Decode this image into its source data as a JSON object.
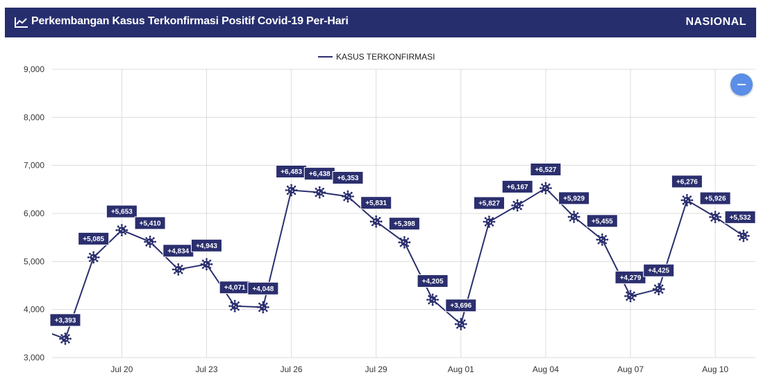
{
  "header": {
    "title": "Perkembangan Kasus Terkonfirmasi Positif Covid-19 Per-Hari",
    "region": "NASIONAL",
    "icon": "line-chart-icon"
  },
  "colors": {
    "header_bg": "#262e6e",
    "series": "#2b2f6e",
    "fab": "#5b8ee6"
  },
  "fab": {
    "icon": "minus-icon"
  },
  "chart_data": {
    "type": "line",
    "title": "",
    "xlabel": "",
    "ylabel": "",
    "ylim": [
      3000,
      9000
    ],
    "yticks": [
      "3,000",
      "4,000",
      "5,000",
      "6,000",
      "7,000",
      "8,000",
      "9,000"
    ],
    "xticks": [
      "Jul 20",
      "Jul 23",
      "Jul 26",
      "Jul 29",
      "Aug 01",
      "Aug 04",
      "Aug 07",
      "Aug 10"
    ],
    "legend": "top-center",
    "grid": true,
    "series": [
      {
        "name": "KASUS TERKONFIRMASI",
        "x": [
          "Jul 18",
          "Jul 19",
          "Jul 20",
          "Jul 21",
          "Jul 22",
          "Jul 23",
          "Jul 24",
          "Jul 25",
          "Jul 26",
          "Jul 27",
          "Jul 28",
          "Jul 29",
          "Jul 30",
          "Jul 31",
          "Aug 01",
          "Aug 02",
          "Aug 03",
          "Aug 04",
          "Aug 05",
          "Aug 06",
          "Aug 07",
          "Aug 08",
          "Aug 09",
          "Aug 10",
          "Aug 11"
        ],
        "values": [
          3393,
          5085,
          5653,
          5410,
          4834,
          4943,
          4071,
          4048,
          6483,
          6438,
          6353,
          5831,
          5398,
          4205,
          3696,
          5827,
          6167,
          6527,
          5929,
          5455,
          4279,
          4425,
          6276,
          5926,
          5532
        ],
        "labels": [
          "+3,393",
          "+5,085",
          "+5,653",
          "+5,410",
          "+4,834",
          "+4,943",
          "+4,071",
          "+4,048",
          "+6,483",
          "+6,438",
          "+6,353",
          "+5,831",
          "+5,398",
          "+4,205",
          "+3,696",
          "+5,827",
          "+6,167",
          "+6,527",
          "+5,929",
          "+5,455",
          "+4,279",
          "+4,425",
          "+6,276",
          "+5,926",
          "+5,532"
        ]
      }
    ]
  }
}
